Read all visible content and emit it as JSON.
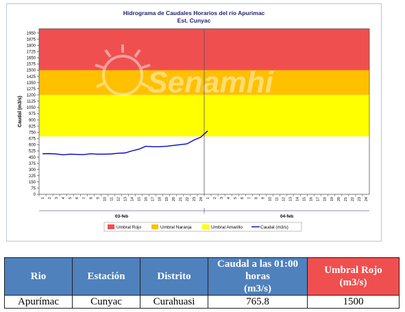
{
  "chart_data": {
    "type": "line",
    "title": "Hidrograma de Caudales Horarios del río Apurimac",
    "subtitle": "Est. Cunyac",
    "ylabel": "Caudal  (m3/s)",
    "xlabel": "",
    "ylim": [
      0,
      2000
    ],
    "yticks": [
      0,
      75,
      150,
      225,
      300,
      375,
      450,
      525,
      600,
      675,
      750,
      825,
      900,
      975,
      1050,
      1125,
      1200,
      1275,
      1350,
      1425,
      1500,
      1575,
      1650,
      1725,
      1800,
      1875,
      1950
    ],
    "xticks": [
      "1",
      "2",
      "3",
      "4",
      "5",
      "6",
      "7",
      "8",
      "9",
      "10",
      "11",
      "12",
      "13",
      "14",
      "15",
      "16",
      "17",
      "18",
      "19",
      "20",
      "21",
      "22",
      "23",
      "24",
      "1",
      "2",
      "3",
      "4",
      "5",
      "6",
      "7",
      "8",
      "9",
      "10",
      "11",
      "12",
      "13",
      "14",
      "15",
      "16",
      "17",
      "18",
      "19",
      "20",
      "21",
      "22",
      "23",
      "24"
    ],
    "day_labels": [
      "03-feb",
      "04-feb"
    ],
    "thresholds": [
      {
        "name": "Umbral Rojo",
        "from": 1500,
        "to": 2000,
        "color": "#f04f4f"
      },
      {
        "name": "Umbral Naranja",
        "from": 1200,
        "to": 1500,
        "color": "#ffc000"
      },
      {
        "name": "Umbral Amarillo",
        "from": 700,
        "to": 1200,
        "color": "#ffff00"
      }
    ],
    "series": [
      {
        "name": "Caudal (m3/s)",
        "color": "#0000cc",
        "x": [
          1,
          2,
          3,
          4,
          5,
          6,
          7,
          8,
          9,
          10,
          11,
          12,
          13,
          14,
          15,
          16,
          17,
          18,
          19,
          20,
          21,
          22,
          23,
          24,
          25
        ],
        "values": [
          490,
          492,
          487,
          478,
          485,
          482,
          480,
          490,
          485,
          485,
          488,
          497,
          500,
          525,
          545,
          580,
          575,
          575,
          580,
          590,
          600,
          610,
          655,
          690,
          765.8
        ]
      }
    ],
    "legend_position": "bottom",
    "grid": false,
    "watermark": "Senamhi"
  },
  "table": {
    "headers": {
      "rio": "Rio",
      "estacion": "Estación",
      "distrito": "Distrito",
      "caudal_main": "Caudal a las 01:00 horas",
      "caudal_unit": "(m3/s)",
      "umbral_main": "Umbral Rojo",
      "umbral_unit": "(m3/s)"
    },
    "row": {
      "rio": "Apurímac",
      "estacion": "Cunyac",
      "distrito": "Curahuasi",
      "caudal": "765.8",
      "umbral": "1500"
    }
  },
  "colors": {
    "header_blue": "#4f81bd",
    "header_red": "#f04f4f",
    "series_blue": "#0000cc"
  }
}
